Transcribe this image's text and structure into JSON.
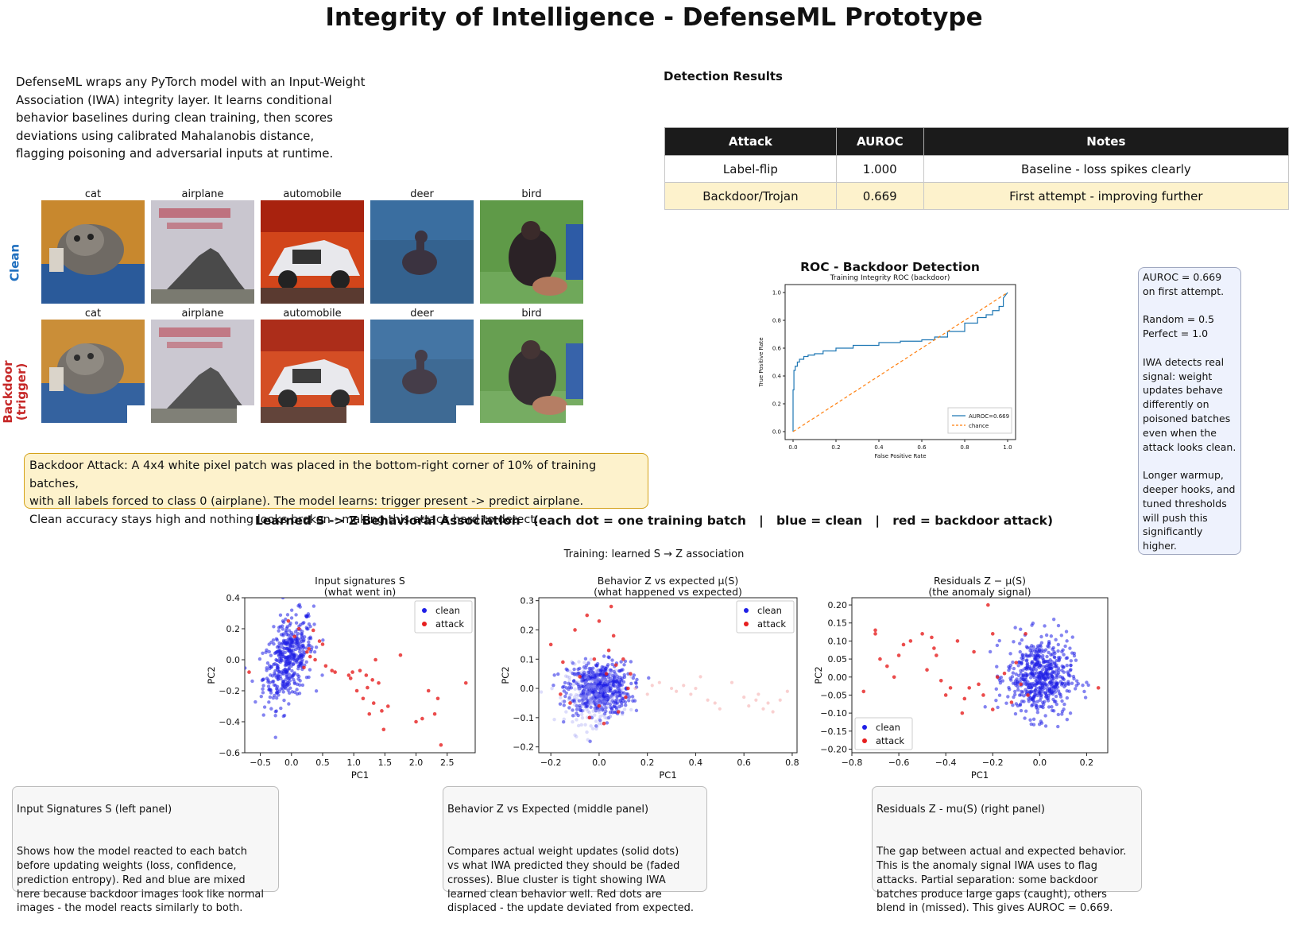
{
  "title": "Integrity of Intelligence - DefenseML Prototype",
  "intro": "DefenseML wraps any PyTorch model with an Input-Weight\nAssociation (IWA) integrity layer. It learns conditional\nbehavior baselines during clean training, then scores\ndeviations using calibrated Mahalanobis distance,\nflagging poisoning and adversarial inputs at runtime.",
  "detection": {
    "title": "Detection Results",
    "headers": [
      "Attack",
      "AUROC",
      "Notes"
    ],
    "rows": [
      {
        "attack": "Label-flip",
        "auroc": "1.000",
        "notes": "Baseline - loss spikes clearly"
      },
      {
        "attack": "Backdoor/Trojan",
        "auroc": "0.669",
        "notes": "First attempt - improving further"
      }
    ]
  },
  "images": {
    "row_labels": [
      "Clean",
      "Backdoor\n(trigger)"
    ],
    "classes": [
      "cat",
      "airplane",
      "automobile",
      "deer",
      "bird"
    ]
  },
  "attack_note": "Backdoor Attack: A 4x4 white pixel patch was placed in the bottom-right corner of 10% of training batches,\nwith all labels forced to class 0 (airplane). The model learns: trigger present -> predict airplane.\nClean accuracy stays high and nothing looks broken - making this attack hard to detect.",
  "assoc_title": "Learned S -> Z Behavioral Association   (each dot = one training batch   |   blue = clean   |   red = backdoor attack)",
  "side_note": "AUROC = 0.669\non first attempt.\n\nRandom = 0.5\nPerfect = 1.0\n\nIWA detects real\nsignal: weight\nupdates behave\ndifferently on\npoisoned batches\neven when the\nattack looks clean.\n\nLonger warmup,\ndeeper hooks, and\ntuned thresholds\nwill push this\nsignificantly\nhigher.",
  "explanations": [
    {
      "title": "Input Signatures S  (left panel)",
      "body": "Shows how the model reacted to each batch\nbefore updating weights (loss, confidence,\nprediction entropy). Red and blue are mixed\nhere because backdoor images look like normal\nimages - the model reacts similarly to both."
    },
    {
      "title": "Behavior Z vs Expected  (middle panel)",
      "body": "Compares actual weight updates (solid dots)\nvs what IWA predicted they should be (faded\ncrosses). Blue cluster is tight showing IWA\nlearned clean behavior well. Red dots are\ndisplaced - the update deviated from expected."
    },
    {
      "title": "Residuals Z - mu(S)  (right panel)",
      "body": "The gap between actual and expected behavior.\nThis is the anomaly signal IWA uses to flag\nattacks. Partial separation: some backdoor\nbatches produce large gaps (caught), others\nblend in (missed). This gives AUROC = 0.669."
    }
  ],
  "colors": {
    "clean": "#1f1fe6",
    "attack": "#e61f1f",
    "roc_line": "#1f77b4",
    "chance": "#ff7f0e",
    "highlight": "#fdf2cc"
  },
  "chart_data": [
    {
      "type": "line",
      "title": "ROC - Backdoor Detection",
      "subtitle": "Training Integrity ROC (backdoor)",
      "xlabel": "False Positive Rate",
      "ylabel": "True Positive Rate",
      "xlim": [
        0,
        1
      ],
      "ylim": [
        0,
        1
      ],
      "xticks": [
        "0.0",
        "0.2",
        "0.4",
        "0.6",
        "0.8",
        "1.0"
      ],
      "yticks": [
        "0.0",
        "0.2",
        "0.4",
        "0.6",
        "0.8",
        "1.0"
      ],
      "legend_position": "bottom-right",
      "series": [
        {
          "name": "AUROC=0.669",
          "style": "solid",
          "x": [
            0.0,
            0.0,
            0.0,
            0.004,
            0.004,
            0.01,
            0.01,
            0.02,
            0.02,
            0.03,
            0.03,
            0.05,
            0.05,
            0.07,
            0.07,
            0.1,
            0.1,
            0.14,
            0.14,
            0.2,
            0.2,
            0.28,
            0.28,
            0.4,
            0.4,
            0.5,
            0.5,
            0.6,
            0.6,
            0.66,
            0.66,
            0.72,
            0.72,
            0.8,
            0.8,
            0.86,
            0.86,
            0.9,
            0.9,
            0.93,
            0.93,
            0.96,
            0.96,
            0.98,
            0.98,
            1.0
          ],
          "y": [
            0.0,
            0.25,
            0.3,
            0.3,
            0.44,
            0.44,
            0.47,
            0.47,
            0.5,
            0.5,
            0.52,
            0.52,
            0.54,
            0.54,
            0.55,
            0.55,
            0.56,
            0.56,
            0.58,
            0.58,
            0.6,
            0.6,
            0.62,
            0.62,
            0.64,
            0.64,
            0.65,
            0.65,
            0.66,
            0.66,
            0.68,
            0.68,
            0.72,
            0.72,
            0.78,
            0.78,
            0.82,
            0.82,
            0.84,
            0.84,
            0.87,
            0.87,
            0.9,
            0.9,
            0.96,
            1.0
          ]
        },
        {
          "name": "chance",
          "style": "dashed",
          "x": [
            0,
            1
          ],
          "y": [
            0,
            1
          ]
        }
      ]
    },
    {
      "type": "scatter",
      "figure_title": "Training: learned S → Z association",
      "title": "Input signatures S\n(what went in)",
      "xlabel": "PC1",
      "ylabel": "PC2",
      "xlim": [
        -0.75,
        2.95
      ],
      "ylim": [
        -0.6,
        0.4
      ],
      "xticks": [
        -0.5,
        0.0,
        0.5,
        1.0,
        1.5,
        2.0,
        2.5
      ],
      "yticks": [
        -0.6,
        -0.4,
        -0.2,
        0.0,
        0.2,
        0.4
      ],
      "legend_position": "top-right",
      "series": [
        {
          "name": "clean",
          "cluster": {
            "mean_x": -0.05,
            "mean_y": 0.0,
            "sd_x": 0.2,
            "sd_y": 0.13,
            "n": 420,
            "tilt": 0.45
          }
        },
        {
          "name": "attack",
          "x": [
            -0.68,
            -0.05,
            0.05,
            0.2,
            0.25,
            0.3,
            0.38,
            0.45,
            0.5,
            0.65,
            0.7,
            0.92,
            0.95,
            0.98,
            1.1,
            1.15,
            1.2,
            1.22,
            1.25,
            1.3,
            1.35,
            1.4,
            1.45,
            1.48,
            1.55,
            1.75,
            2.0,
            2.1,
            2.2,
            2.3,
            2.35,
            2.4,
            2.8,
            0.12,
            0.35,
            0.55,
            0.28,
            1.05,
            1.32
          ],
          "y": [
            -0.08,
            0.25,
            0.15,
            -0.05,
            0.05,
            0.02,
            0.0,
            0.12,
            0.1,
            -0.07,
            -0.08,
            -0.1,
            -0.12,
            -0.08,
            -0.07,
            -0.25,
            -0.1,
            -0.18,
            -0.35,
            -0.13,
            0.0,
            -0.15,
            -0.33,
            -0.45,
            -0.3,
            0.03,
            -0.4,
            -0.38,
            -0.2,
            -0.35,
            -0.25,
            -0.55,
            -0.15,
            0.2,
            0.19,
            -0.04,
            0.07,
            -0.2,
            -0.28
          ]
        }
      ]
    },
    {
      "type": "scatter",
      "title": "Behavior Z vs expected μ(S)\n(what happened vs expected)",
      "xlabel": "PC1",
      "ylabel": "PC2",
      "xlim": [
        -0.25,
        0.82
      ],
      "ylim": [
        -0.22,
        0.31
      ],
      "xticks": [
        -0.2,
        0.0,
        0.2,
        0.4,
        0.6,
        0.8
      ],
      "yticks": [
        -0.2,
        -0.1,
        0.0,
        0.1,
        0.2,
        0.3
      ],
      "legend_position": "top-right",
      "series": [
        {
          "name": "clean",
          "cluster": {
            "mean_x": 0.0,
            "mean_y": 0.0,
            "sd_x": 0.065,
            "sd_y": 0.045,
            "n": 520,
            "tilt": 0.0
          }
        },
        {
          "name": "attack",
          "x": [
            -0.2,
            -0.15,
            -0.1,
            -0.05,
            0.0,
            0.05,
            0.1,
            0.12,
            -0.12,
            0.08,
            0.02,
            -0.02,
            0.03,
            0.11,
            -0.08,
            0.06,
            0.0,
            -0.16,
            0.13,
            0.04,
            -0.04,
            0.07
          ],
          "y": [
            0.15,
            0.09,
            0.2,
            0.25,
            0.23,
            0.28,
            0.1,
            0.0,
            -0.05,
            -0.08,
            -0.12,
            0.1,
            0.05,
            -0.03,
            0.04,
            0.18,
            -0.06,
            -0.02,
            0.05,
            0.13,
            -0.1,
            0.08
          ]
        },
        {
          "name": "expected (faded)",
          "x": [
            0.15,
            0.2,
            0.22,
            0.3,
            0.32,
            0.35,
            0.38,
            0.4,
            0.42,
            0.48,
            0.5,
            0.55,
            0.6,
            0.62,
            0.65,
            0.66,
            0.7,
            0.72,
            0.75,
            0.78,
            0.25,
            0.45,
            0.68
          ],
          "y": [
            0.0,
            -0.02,
            0.01,
            0.0,
            -0.01,
            0.01,
            -0.02,
            0.0,
            0.04,
            -0.05,
            -0.07,
            0.02,
            -0.03,
            -0.06,
            -0.04,
            -0.02,
            -0.05,
            -0.08,
            -0.04,
            -0.01,
            0.02,
            -0.04,
            -0.07
          ]
        }
      ]
    },
    {
      "type": "scatter",
      "title": "Residuals Z − μ(S)\n(the anomaly signal)",
      "xlabel": "PC1",
      "ylabel": "PC2",
      "xlim": [
        -0.8,
        0.29
      ],
      "ylim": [
        -0.21,
        0.22
      ],
      "xticks": [
        -0.8,
        -0.6,
        -0.4,
        -0.2,
        0.0,
        0.2
      ],
      "yticks": [
        -0.2,
        -0.15,
        -0.1,
        -0.05,
        0.0,
        0.05,
        0.1,
        0.15,
        0.2
      ],
      "legend_position": "bottom-left",
      "series": [
        {
          "name": "clean",
          "cluster": {
            "mean_x": 0.0,
            "mean_y": 0.0,
            "sd_x": 0.07,
            "sd_y": 0.055,
            "n": 540,
            "tilt": 0.0
          }
        },
        {
          "name": "attack",
          "x": [
            -0.7,
            -0.7,
            -0.68,
            -0.65,
            -0.62,
            -0.6,
            -0.55,
            -0.5,
            -0.48,
            -0.46,
            -0.44,
            -0.42,
            -0.4,
            -0.38,
            -0.35,
            -0.33,
            -0.3,
            -0.28,
            -0.26,
            -0.24,
            -0.22,
            -0.2,
            -0.2,
            -0.18,
            -0.15,
            -0.12,
            -0.1,
            -0.08,
            -0.06,
            -0.05,
            -0.75,
            -0.58,
            -0.45,
            -0.32,
            0.25
          ],
          "y": [
            0.13,
            0.12,
            0.05,
            0.03,
            0.0,
            0.06,
            0.1,
            0.12,
            0.02,
            0.11,
            0.06,
            -0.01,
            -0.05,
            -0.03,
            0.1,
            -0.1,
            -0.03,
            0.07,
            -0.02,
            -0.05,
            0.2,
            0.12,
            -0.09,
            0.0,
            0.01,
            -0.07,
            0.04,
            -0.02,
            0.12,
            -0.05,
            -0.04,
            0.09,
            0.08,
            -0.06,
            -0.03
          ]
        }
      ]
    }
  ]
}
